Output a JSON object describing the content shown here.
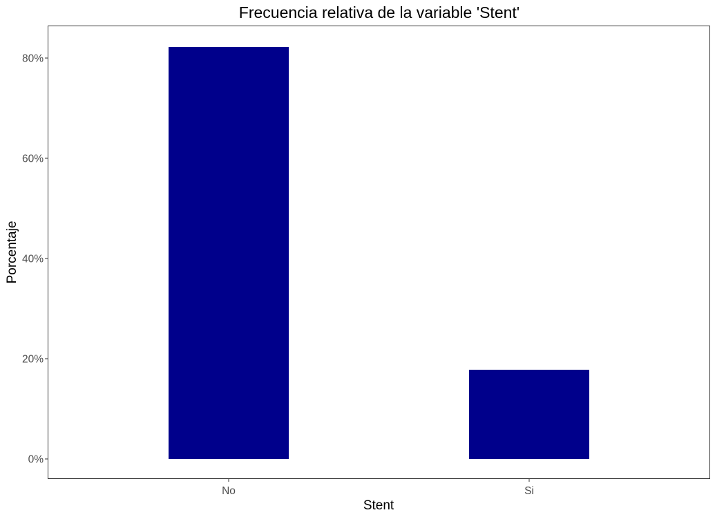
{
  "chart_data": {
    "type": "bar",
    "title": "Frecuencia relativa de la variable 'Stent'",
    "xlabel": "Stent",
    "ylabel": "Porcentaje",
    "categories": [
      "No",
      "Si"
    ],
    "values": [
      82.2,
      17.8
    ],
    "ylim": [
      0,
      86.3
    ],
    "yticks": [
      0,
      20,
      40,
      60,
      80
    ],
    "ytick_labels": [
      "0%",
      "20%",
      "40%",
      "60%",
      "80%"
    ],
    "bar_color": "#00008B",
    "grid": false,
    "legend": "none"
  }
}
